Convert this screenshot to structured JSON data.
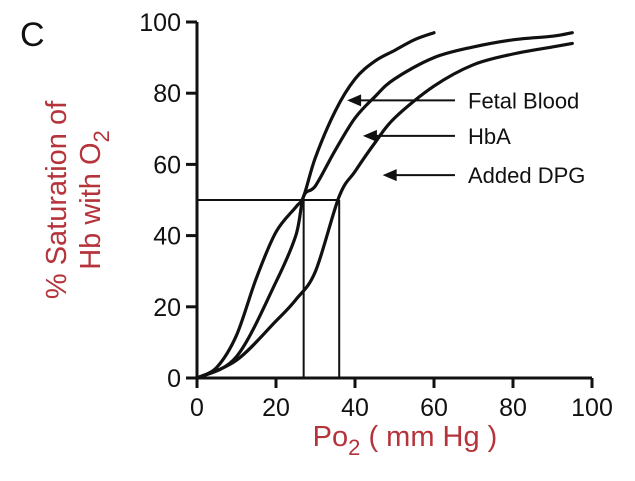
{
  "panel_label": "C",
  "chart_data": {
    "type": "line",
    "xlabel": {
      "prefix": "Po",
      "sub": "2",
      "suffix": " ( mm Hg )"
    },
    "ylabel": {
      "line1": "% Saturation of",
      "line2_prefix": "Hb with O",
      "line2_sub": "2"
    },
    "xlim": [
      0,
      100
    ],
    "ylim": [
      0,
      100
    ],
    "xticks": [
      0,
      20,
      40,
      60,
      80,
      100
    ],
    "yticks": [
      0,
      20,
      40,
      60,
      80,
      100
    ],
    "grid": false,
    "label_color": "#b5343b",
    "line_color": "#111111",
    "series": [
      {
        "name": "Fetal Blood",
        "x": [
          0,
          5,
          10,
          15,
          20,
          25,
          27,
          30,
          35,
          40,
          45,
          50,
          55,
          60
        ],
        "y": [
          0,
          3,
          12,
          28,
          41,
          48,
          51,
          62,
          75,
          84,
          89,
          92,
          95,
          97
        ]
      },
      {
        "name": "HbA",
        "x": [
          0,
          10,
          20,
          25,
          27,
          30,
          35,
          40,
          45,
          50,
          60,
          70,
          80,
          90,
          95
        ],
        "y": [
          0,
          6,
          27,
          40,
          51,
          54,
          64,
          73,
          79,
          84,
          90,
          93,
          95,
          96,
          97
        ]
      },
      {
        "name": "Added DPG",
        "x": [
          0,
          10,
          20,
          25,
          30,
          36,
          40,
          45,
          50,
          60,
          70,
          80,
          90,
          95
        ],
        "y": [
          0,
          5,
          16,
          22,
          30,
          51,
          58,
          66,
          73,
          82,
          88,
          91,
          93,
          94
        ]
      }
    ],
    "annotations": [
      {
        "text": "Fetal Blood",
        "series": 0,
        "arrow_tip": [
          38,
          78
        ]
      },
      {
        "text": "HbA",
        "series": 1,
        "arrow_tip": [
          42,
          68
        ]
      },
      {
        "text": "Added DPG",
        "series": 2,
        "arrow_tip": [
          47,
          57
        ]
      }
    ],
    "reference_lines": {
      "y": 50,
      "x_values": [
        27,
        36
      ]
    }
  }
}
